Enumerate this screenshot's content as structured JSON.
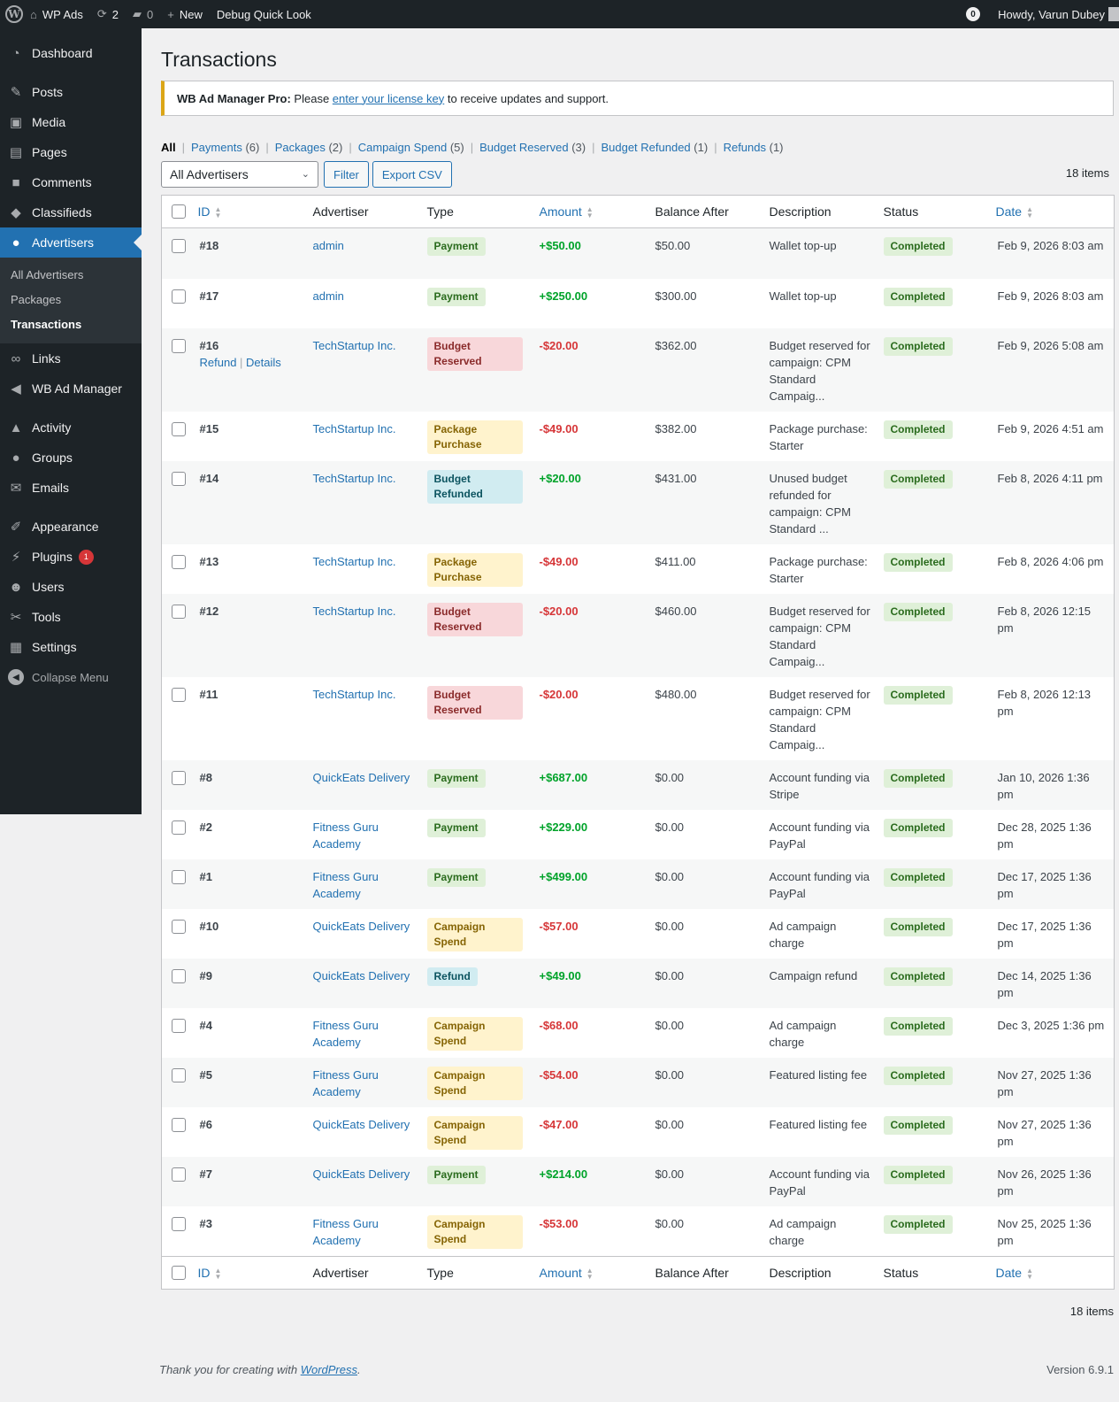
{
  "adminbar": {
    "site_name": "WP Ads",
    "updates_count": "2",
    "comments_count": "0",
    "new_label": "New",
    "debug_label": "Debug Quick Look",
    "notif_count": "0",
    "howdy": "Howdy, Varun Dubey"
  },
  "sidebar": {
    "items": [
      {
        "label": "Dashboard",
        "icon": "dashboard-icon",
        "glyph": "◔"
      },
      {
        "label": "Posts",
        "icon": "pin-icon",
        "glyph": "✎"
      },
      {
        "label": "Media",
        "icon": "media-icon",
        "glyph": "▣"
      },
      {
        "label": "Pages",
        "icon": "pages-icon",
        "glyph": "▤"
      },
      {
        "label": "Comments",
        "icon": "comment-icon",
        "glyph": "■"
      },
      {
        "label": "Classifieds",
        "icon": "tag-icon",
        "glyph": "◆"
      },
      {
        "label": "Advertisers",
        "icon": "groups-icon",
        "glyph": "●"
      }
    ],
    "submenu": [
      {
        "label": "All Advertisers"
      },
      {
        "label": "Packages"
      },
      {
        "label": "Transactions"
      }
    ],
    "items2": [
      {
        "label": "Links",
        "icon": "link-icon",
        "glyph": "∞"
      },
      {
        "label": "WB Ad Manager",
        "icon": "megaphone-icon",
        "glyph": "◀"
      }
    ],
    "items3": [
      {
        "label": "Activity",
        "icon": "activity-icon",
        "glyph": "▲"
      },
      {
        "label": "Groups",
        "icon": "groups-icon",
        "glyph": "●"
      },
      {
        "label": "Emails",
        "icon": "email-icon",
        "glyph": "✉"
      }
    ],
    "items4": [
      {
        "label": "Appearance",
        "icon": "brush-icon",
        "glyph": "✐"
      },
      {
        "label": "Plugins",
        "icon": "plugin-icon",
        "glyph": "⚡",
        "badge": "1"
      },
      {
        "label": "Users",
        "icon": "user-icon",
        "glyph": "☻"
      },
      {
        "label": "Tools",
        "icon": "wrench-icon",
        "glyph": "✂"
      },
      {
        "label": "Settings",
        "icon": "settings-icon",
        "glyph": "▦"
      }
    ],
    "collapse_label": "Collapse Menu"
  },
  "page": {
    "title": "Transactions",
    "notice_bold": "WB Ad Manager Pro:",
    "notice_pre": " Please ",
    "notice_link": "enter your license key",
    "notice_post": " to receive updates and support."
  },
  "filters": [
    {
      "label": "All",
      "count": ""
    },
    {
      "label": "Payments",
      "count": "(6)"
    },
    {
      "label": "Packages",
      "count": "(2)"
    },
    {
      "label": "Campaign Spend",
      "count": "(5)"
    },
    {
      "label": "Budget Reserved",
      "count": "(3)"
    },
    {
      "label": "Budget Refunded",
      "count": "(1)"
    },
    {
      "label": "Refunds",
      "count": "(1)"
    }
  ],
  "tablenav": {
    "advertiser_select": "All Advertisers",
    "filter_button": "Filter",
    "export_button": "Export CSV",
    "items_count": "18 items"
  },
  "columns": {
    "id": "ID",
    "advertiser": "Advertiser",
    "type": "Type",
    "amount": "Amount",
    "balance": "Balance After",
    "description": "Description",
    "status": "Status",
    "date": "Date"
  },
  "row_actions": {
    "refund": "Refund",
    "details": "Details"
  },
  "rows": [
    {
      "id": "#18",
      "advertiser": "admin",
      "type": "Payment",
      "type_class": "t-payment",
      "amount": "+$50.00",
      "sign": "pos",
      "balance": "$50.00",
      "description": "Wallet top-up",
      "status": "Completed",
      "date": "Feb 9, 2026 8:03 am"
    },
    {
      "id": "#17",
      "advertiser": "admin",
      "type": "Payment",
      "type_class": "t-payment",
      "amount": "+$250.00",
      "sign": "pos",
      "balance": "$300.00",
      "description": "Wallet top-up",
      "status": "Completed",
      "date": "Feb 9, 2026 8:03 am"
    },
    {
      "id": "#16",
      "advertiser": "TechStartup Inc.",
      "type": "Budget Reserved",
      "type_class": "t-reserved",
      "amount": "-$20.00",
      "sign": "neg",
      "balance": "$362.00",
      "description": "Budget reserved for campaign: CPM Standard Campaig...",
      "status": "Completed",
      "date": "Feb 9, 2026 5:08 am",
      "actions": true
    },
    {
      "id": "#15",
      "advertiser": "TechStartup Inc.",
      "type": "Package Purchase",
      "type_class": "t-package",
      "amount": "-$49.00",
      "sign": "neg",
      "balance": "$382.00",
      "description": "Package purchase: Starter",
      "status": "Completed",
      "date": "Feb 9, 2026 4:51 am"
    },
    {
      "id": "#14",
      "advertiser": "TechStartup Inc.",
      "type": "Budget Refunded",
      "type_class": "t-refunded",
      "amount": "+$20.00",
      "sign": "pos",
      "balance": "$431.00",
      "description": "Unused budget refunded for campaign: CPM Standard ...",
      "status": "Completed",
      "date": "Feb 8, 2026 4:11 pm"
    },
    {
      "id": "#13",
      "advertiser": "TechStartup Inc.",
      "type": "Package Purchase",
      "type_class": "t-package",
      "amount": "-$49.00",
      "sign": "neg",
      "balance": "$411.00",
      "description": "Package purchase: Starter",
      "status": "Completed",
      "date": "Feb 8, 2026 4:06 pm"
    },
    {
      "id": "#12",
      "advertiser": "TechStartup Inc.",
      "type": "Budget Reserved",
      "type_class": "t-reserved",
      "amount": "-$20.00",
      "sign": "neg",
      "balance": "$460.00",
      "description": "Budget reserved for campaign: CPM Standard Campaig...",
      "status": "Completed",
      "date": "Feb 8, 2026 12:15 pm"
    },
    {
      "id": "#11",
      "advertiser": "TechStartup Inc.",
      "type": "Budget Reserved",
      "type_class": "t-reserved",
      "amount": "-$20.00",
      "sign": "neg",
      "balance": "$480.00",
      "description": "Budget reserved for campaign: CPM Standard Campaig...",
      "status": "Completed",
      "date": "Feb 8, 2026 12:13 pm"
    },
    {
      "id": "#8",
      "advertiser": "QuickEats Delivery",
      "type": "Payment",
      "type_class": "t-payment",
      "amount": "+$687.00",
      "sign": "pos",
      "balance": "$0.00",
      "description": "Account funding via Stripe",
      "status": "Completed",
      "date": "Jan 10, 2026 1:36 pm"
    },
    {
      "id": "#2",
      "advertiser": "Fitness Guru Academy",
      "type": "Payment",
      "type_class": "t-payment",
      "amount": "+$229.00",
      "sign": "pos",
      "balance": "$0.00",
      "description": "Account funding via PayPal",
      "status": "Completed",
      "date": "Dec 28, 2025 1:36 pm"
    },
    {
      "id": "#1",
      "advertiser": "Fitness Guru Academy",
      "type": "Payment",
      "type_class": "t-payment",
      "amount": "+$499.00",
      "sign": "pos",
      "balance": "$0.00",
      "description": "Account funding via PayPal",
      "status": "Completed",
      "date": "Dec 17, 2025 1:36 pm"
    },
    {
      "id": "#10",
      "advertiser": "QuickEats Delivery",
      "type": "Campaign Spend",
      "type_class": "t-spend",
      "amount": "-$57.00",
      "sign": "neg",
      "balance": "$0.00",
      "description": "Ad campaign charge",
      "status": "Completed",
      "date": "Dec 17, 2025 1:36 pm"
    },
    {
      "id": "#9",
      "advertiser": "QuickEats Delivery",
      "type": "Refund",
      "type_class": "t-refund",
      "amount": "+$49.00",
      "sign": "pos",
      "balance": "$0.00",
      "description": "Campaign refund",
      "status": "Completed",
      "date": "Dec 14, 2025 1:36 pm"
    },
    {
      "id": "#4",
      "advertiser": "Fitness Guru Academy",
      "type": "Campaign Spend",
      "type_class": "t-spend",
      "amount": "-$68.00",
      "sign": "neg",
      "balance": "$0.00",
      "description": "Ad campaign charge",
      "status": "Completed",
      "date": "Dec 3, 2025 1:36 pm"
    },
    {
      "id": "#5",
      "advertiser": "Fitness Guru Academy",
      "type": "Campaign Spend",
      "type_class": "t-spend",
      "amount": "-$54.00",
      "sign": "neg",
      "balance": "$0.00",
      "description": "Featured listing fee",
      "status": "Completed",
      "date": "Nov 27, 2025 1:36 pm"
    },
    {
      "id": "#6",
      "advertiser": "QuickEats Delivery",
      "type": "Campaign Spend",
      "type_class": "t-spend",
      "amount": "-$47.00",
      "sign": "neg",
      "balance": "$0.00",
      "description": "Featured listing fee",
      "status": "Completed",
      "date": "Nov 27, 2025 1:36 pm"
    },
    {
      "id": "#7",
      "advertiser": "QuickEats Delivery",
      "type": "Payment",
      "type_class": "t-payment",
      "amount": "+$214.00",
      "sign": "pos",
      "balance": "$0.00",
      "description": "Account funding via PayPal",
      "status": "Completed",
      "date": "Nov 26, 2025 1:36 pm"
    },
    {
      "id": "#3",
      "advertiser": "Fitness Guru Academy",
      "type": "Campaign Spend",
      "type_class": "t-spend",
      "amount": "-$53.00",
      "sign": "neg",
      "balance": "$0.00",
      "description": "Ad campaign charge",
      "status": "Completed",
      "date": "Nov 25, 2025 1:36 pm"
    }
  ],
  "footer": {
    "thanks_pre": "Thank you for creating with ",
    "thanks_link": "WordPress",
    "thanks_post": ".",
    "version": "Version 6.9.1"
  }
}
